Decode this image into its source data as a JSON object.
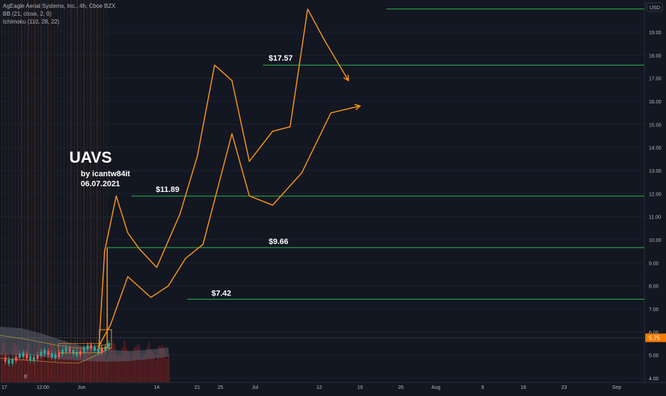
{
  "header": {
    "symbol_line": "AgEagle Aerial Systems, Inc., 4h, Cboe BZX",
    "indicator_bb": "BB (21, close, 2, 0)",
    "indicator_ichimoku": "Ichimoku (110, 28, 22)"
  },
  "price_axis": {
    "currency": "USD",
    "ticks": [
      "4.00",
      "5.00",
      "6.00",
      "7.00",
      "8.00",
      "9.00",
      "10.00",
      "11.00",
      "12.00",
      "13.00",
      "14.00",
      "15.00",
      "16.00",
      "17.00",
      "18.00",
      "19.00"
    ],
    "last_price": "5.75"
  },
  "time_axis": {
    "ticks": [
      "17",
      "12:00",
      "Jun",
      "14",
      "21",
      "25",
      "Jul",
      "12",
      "19",
      "26",
      "Aug",
      "9",
      "16",
      "23",
      "Sep"
    ]
  },
  "annotations": {
    "ticker": "UAVS",
    "author": "by icantw84it",
    "date": "06.07.2021",
    "level_labels": [
      "$17.57",
      "$11.89",
      "$9.66",
      "$7.42"
    ]
  },
  "colors": {
    "background": "#131722",
    "projection": "#f7931a",
    "level_line": "#2db84a",
    "volume": "#7a1f1f",
    "cloud": "#5d606b",
    "price_marker": "#f57c00",
    "grid": "#1e222d",
    "axis_text": "#b2b5be"
  },
  "chart_data": {
    "type": "line",
    "title": "UAVS",
    "ylim": [
      3.9,
      20.2
    ],
    "horizontal_levels": [
      17.57,
      11.89,
      9.66,
      7.42,
      20.0,
      5.75
    ],
    "series": [
      {
        "name": "",
        "x": [
          "2021-06-04",
          "2021-06-05",
          "2021-06-07",
          "2021-06-09",
          "2021-06-11",
          "2021-06-14",
          "2021-06-18",
          "2021-06-21",
          "2021-06-24",
          "2021-06-27",
          "2021-06-30",
          "2021-07-04",
          "2021-07-07",
          "2021-07-10",
          "2021-07-13",
          "2021-07-17",
          "2021-07-20",
          "2021-07-24",
          "2021-07-27"
        ],
        "y": [
          5.3,
          9.5,
          11.9,
          10.3,
          9.6,
          8.8,
          11.1,
          13.6,
          17.57,
          16.9,
          13.4,
          14.7,
          14.9,
          20.0,
          18.6,
          16.9,
          null,
          null,
          null
        ]
      },
      {
        "name": "",
        "x": [
          "2021-06-04",
          "2021-06-06",
          "2021-06-09",
          "2021-06-13",
          "2021-06-16",
          "2021-06-19",
          "2021-06-22",
          "2021-06-27",
          "2021-06-30",
          "2021-07-04",
          "2021-07-09",
          "2021-07-14",
          "2021-07-19"
        ],
        "y": [
          5.4,
          6.3,
          8.4,
          7.5,
          8.0,
          9.2,
          9.8,
          14.6,
          11.9,
          11.5,
          12.9,
          15.5,
          15.8
        ]
      }
    ]
  }
}
